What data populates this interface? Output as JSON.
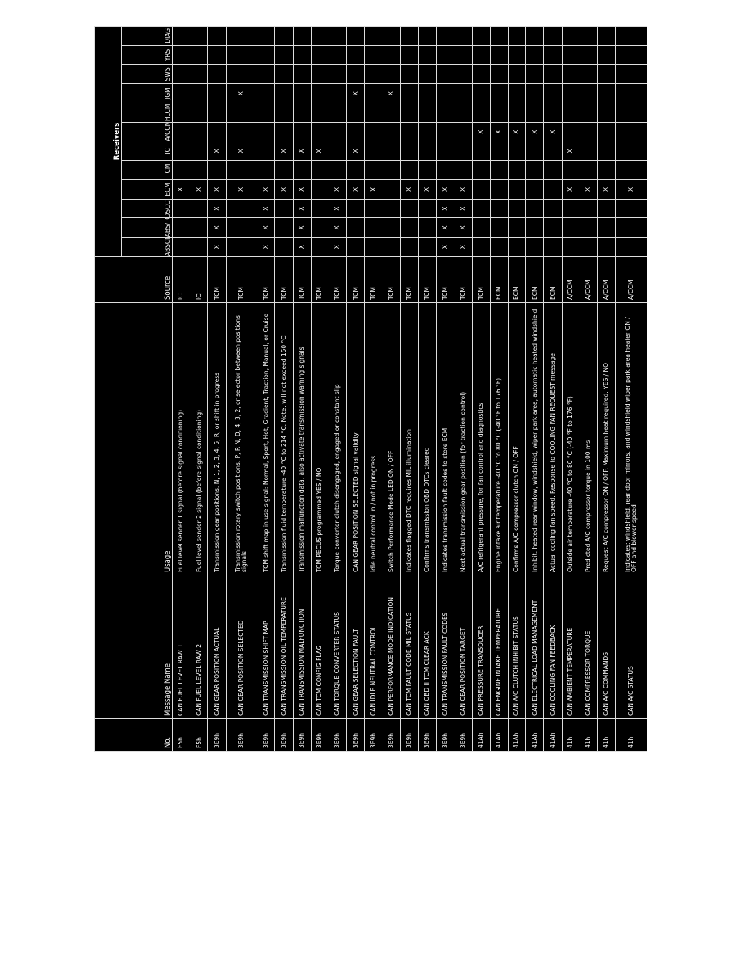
{
  "table": {
    "group_header": "Receivers",
    "headers": [
      "No.",
      "Message Name",
      "Usage",
      "Source",
      "ABSCM",
      "ABS/TCCM",
      "DSCCM",
      "ECM",
      "TCM",
      "IC",
      "A/CCM",
      "HLCM",
      "JGM",
      "SWS",
      "YRS",
      "DIAG"
    ],
    "rows": [
      [
        "F5h",
        "CAN FUEL LEVEL RAW 1",
        "Fuel level sender 1 signal (before signal conditioning)",
        "IC",
        null,
        null,
        null,
        "X",
        null,
        null,
        null,
        null,
        null,
        null,
        null,
        null
      ],
      [
        "F5h",
        "CAN FUEL LEVEL RAW 2",
        "Fuel level sender 2 signal (before signal conditioning)",
        "IC",
        null,
        null,
        null,
        "X",
        null,
        null,
        null,
        null,
        null,
        null,
        null,
        null
      ],
      [
        "3E9h",
        "CAN GEAR POSITION ACTUAL",
        "Transmission gear positions: N, 1, 2, 3, 4, 5, R, or shift in progress",
        "TCM",
        "X",
        "X",
        "X",
        "X",
        null,
        "X",
        null,
        null,
        null,
        null,
        null,
        null
      ],
      [
        "3E9h",
        "CAN GEAR POSITION SELECTED",
        "Transmission rotary switch positions: P, R N, D, 4, 3, 2, or selector between positions signals",
        "TCM",
        null,
        null,
        null,
        "X",
        null,
        "X",
        null,
        null,
        "X",
        null,
        null,
        null
      ],
      [
        "3E9h",
        "CAN TRANSMISSION SHIFT MAP",
        "TCM shift map in use signal: Normal, Sport, Hot, Gradient, Traction, Manual, or Cruise",
        "TCM",
        "X",
        "X",
        "X",
        "X",
        null,
        null,
        null,
        null,
        null,
        null,
        null,
        null
      ],
      [
        "3E9h",
        "CAN TRANSMISSION OIL TEMPERATURE",
        "Transmission fluid temperature -40 °C to 214 °C. Note: will not exceed 150 °C",
        "TCM",
        null,
        null,
        null,
        "X",
        null,
        "X",
        null,
        null,
        null,
        null,
        null,
        null
      ],
      [
        "3E9h",
        "CAN TRANSMISSION MALFUNCTION",
        "Transmission malfunction data, also activate transmission warning signals",
        "TCM",
        "X",
        "X",
        "X",
        "X",
        null,
        "X",
        null,
        null,
        null,
        null,
        null,
        null
      ],
      [
        "3E9h",
        "CAN TCM CONFIG FLAG",
        "TCM PECUS programmed YES / NO",
        "TCM",
        null,
        null,
        null,
        null,
        null,
        "X",
        null,
        null,
        null,
        null,
        null,
        null
      ],
      [
        "3E9h",
        "CAN TORQUE CONVERTER STATUS",
        "Torque converter clutch disengaged, engaged or constant slip",
        "TCM",
        "X",
        "X",
        "X",
        "X",
        null,
        null,
        null,
        null,
        null,
        null,
        null,
        null
      ],
      [
        "3E9h",
        "CAN GEAR SELECTION FAULT",
        "CAN GEAR POSITION SELECTED signal validity",
        "TCM",
        null,
        null,
        null,
        "X",
        null,
        "X",
        null,
        null,
        "X",
        null,
        null,
        null
      ],
      [
        "3E9h",
        "CAN IDLE NEUTRAL CONTROL",
        "Idle neutral control in / not in progress",
        "TCM",
        null,
        null,
        null,
        "X",
        null,
        null,
        null,
        null,
        null,
        null,
        null,
        null
      ],
      [
        "3E9h",
        "CAN PERFORMANCE MODE INDICATION",
        "Switch Performance Mode LED ON / OFF",
        "TCM",
        null,
        null,
        null,
        null,
        null,
        null,
        null,
        null,
        "X",
        null,
        null,
        null
      ],
      [
        "3E9h",
        "CAN TCM FAULT CODE MIL STATUS",
        "Indicates flagged DTC requires MIL illumination",
        "TCM",
        null,
        null,
        null,
        "X",
        null,
        null,
        null,
        null,
        null,
        null,
        null,
        null
      ],
      [
        "3E9h",
        "CAN OBD II TCM CLEAR ACK",
        "Confirms transmission OBD DTCs cleared",
        "TCM",
        null,
        null,
        null,
        "X",
        null,
        null,
        null,
        null,
        null,
        null,
        null,
        null
      ],
      [
        "3E9h",
        "CAN TRANSMISSION FAULT CODES",
        "Indicates transmission fault codes to store ECM",
        "TCM",
        "X",
        "X",
        "X",
        "X",
        null,
        null,
        null,
        null,
        null,
        null,
        null,
        null
      ],
      [
        "3E9h",
        "CAN GEAR POSITION TARGET",
        "Next actual transmission gear position (for traction control)",
        "TCM",
        "X",
        "X",
        "X",
        "X",
        null,
        null,
        null,
        null,
        null,
        null,
        null,
        null
      ],
      [
        "41Ah",
        "CAN PRESSURE TRANSDUCER",
        "A/C refrigerant pressure, for fan control and diagnostics",
        "TCM",
        null,
        null,
        null,
        null,
        null,
        null,
        "X",
        null,
        null,
        null,
        null,
        null
      ],
      [
        "41Ah",
        "CAN ENGINE INTAKE TEMPERATURE",
        "Engine intake air temperature -40 °C to 80 °C (-40 °F to 176 °F)",
        "ECM",
        null,
        null,
        null,
        null,
        null,
        null,
        "X",
        null,
        null,
        null,
        null,
        null
      ],
      [
        "41Ah",
        "CAN A/C CLUTCH INHIBIT STATUS",
        "Confirms A/C compressor clutch ON / OFF",
        "ECM",
        null,
        null,
        null,
        null,
        null,
        null,
        "X",
        null,
        null,
        null,
        null,
        null
      ],
      [
        "41Ah",
        "CAN ELECTRICAL LOAD MANAGEMENT",
        "Inhibit: heated rear window, windshield, wiper park area, automatic heated windshield",
        "ECM",
        null,
        null,
        null,
        null,
        null,
        null,
        "X",
        null,
        null,
        null,
        null,
        null
      ],
      [
        "41Ah",
        "CAN COOLING FAN FEEDBACK",
        "Actual cooling fan speed. Response to COOLING FAN REQUEST message",
        "ECM",
        null,
        null,
        null,
        null,
        null,
        null,
        "X",
        null,
        null,
        null,
        null,
        null
      ],
      [
        "41h",
        "CAN AMBIENT TEMPERATURE",
        "Outside air temperature -40 °C to 80 °C (-40 °F to 176 °F)",
        "A/CCM",
        null,
        null,
        null,
        "X",
        null,
        "X",
        null,
        null,
        null,
        null,
        null,
        null
      ],
      [
        "41h",
        "CAN COMPRESSOR TORQUE",
        "Predicted A/C compressor torque in 100 ms",
        "A/CCM",
        null,
        null,
        null,
        "X",
        null,
        null,
        null,
        null,
        null,
        null,
        null,
        null
      ],
      [
        "41h",
        "CAN A/C COMMANDS",
        "Request A/C compressor ON / OFF. Maximum heat required: YES / NO",
        "A/CCM",
        null,
        null,
        null,
        "X",
        null,
        null,
        null,
        null,
        null,
        null,
        null,
        null
      ],
      [
        "41h",
        "CAN A/C STATUS",
        "Indicates: windshield, rear door mirrors, and windshield wiper park area heater ON / OFF and blower speed",
        "A/CCM",
        null,
        null,
        null,
        "X",
        null,
        null,
        null,
        null,
        null,
        null,
        null,
        null
      ]
    ]
  }
}
